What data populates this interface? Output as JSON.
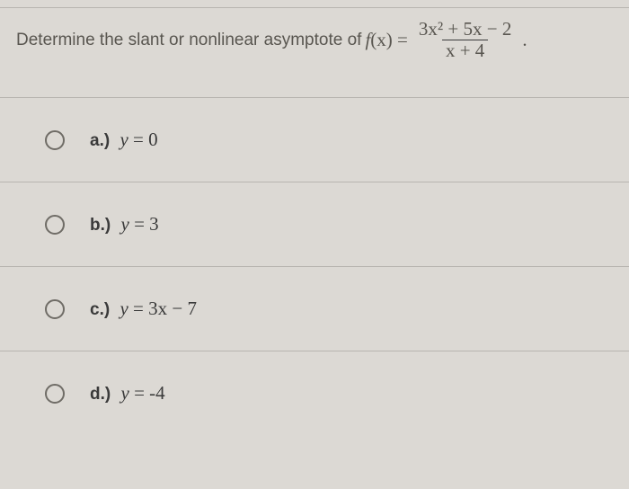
{
  "question": {
    "prompt_prefix": "Determine the slant or nonlinear asymptote of ",
    "fn_name": "f",
    "fn_arg": "(x)",
    "equals": " = ",
    "numerator": "3x² + 5x − 2",
    "denominator": "x + 4",
    "trailing": "."
  },
  "options": [
    {
      "prefix": "a.)",
      "var": "y",
      "eq": " = ",
      "rhs": "0"
    },
    {
      "prefix": "b.)",
      "var": "y",
      "eq": " = ",
      "rhs": "3"
    },
    {
      "prefix": "c.)",
      "var": "y",
      "eq": " = ",
      "rhs": "3x − 7"
    },
    {
      "prefix": "d.)",
      "var": "y",
      "eq": " = ",
      "rhs": " -4"
    }
  ],
  "colors": {
    "background": "#dcd9d4",
    "border": "#b8b5b0",
    "text": "#3a3a3a",
    "prompt": "#595650",
    "radio_border": "#6f6c66"
  }
}
